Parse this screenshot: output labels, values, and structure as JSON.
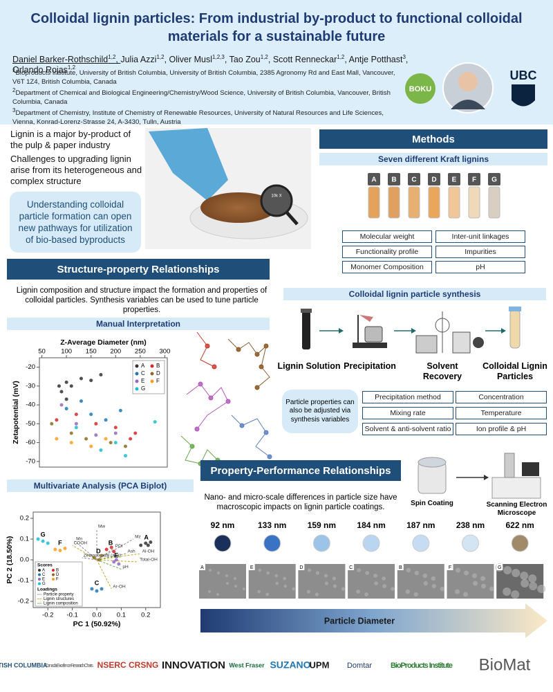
{
  "header": {
    "title": "Colloidal lignin particles: From industrial by-product to functional colloidal materials for a sustainable future",
    "authors": [
      {
        "name": "Daniel Barker-Rothschild",
        "sup": "1,2"
      },
      {
        "name": "Julia Azzi",
        "sup": "1,2"
      },
      {
        "name": "Oliver Musl",
        "sup": "1,2,3"
      },
      {
        "name": "Tao Zou",
        "sup": "1,2"
      },
      {
        "name": "Scott Renneckar",
        "sup": "1,2"
      },
      {
        "name": "Antje Potthast",
        "sup": "3"
      },
      {
        "name": "Orlando Rojas",
        "sup": "1,2"
      }
    ],
    "affiliations": [
      {
        "sup": "1",
        "text": "Bioproducts Institute, University of British Columbia, University of British Columbia, 2385 Agronomy Rd and East Mall, Vancouver, V6T 1Z4, British Columbia, Canada"
      },
      {
        "sup": "2",
        "text": "Department of Chemical and Biological Engineering/Chemistry/Wood Science, University of British Columbia, Vancouver, British Columbia, Canada"
      },
      {
        "sup": "3",
        "text": "Department of Chemistry, Institute of Chemistry of Renewable Resources, University of Natural Resources and Life Sciences, Vienna, Konrad-Lorenz-Strasse 24, A-3430, Tulln, Austria"
      }
    ],
    "logos": [
      "BOKU",
      "UBC"
    ]
  },
  "intro": {
    "points": [
      "Lignin is a major by-product of the pulp & paper industry",
      "Challenges to upgrading lignin arise from its heterogeneous and complex structure"
    ],
    "callout": "Understanding colloidal particle formation can open new pathways for utilization of bio-based byproducts",
    "photo_label": "10k X"
  },
  "methods": {
    "heading": "Methods",
    "subheading": "Seven different Kraft lignins",
    "vials": [
      "A",
      "B",
      "C",
      "D",
      "E",
      "F",
      "G"
    ],
    "properties": [
      "Molecular weight",
      "Inter-unit linkages",
      "Functionality profile",
      "Impurities",
      "Monomer Composition",
      "pH"
    ]
  },
  "structure": {
    "heading": "Structure-property Relationships",
    "text": "Lignin composition and structure impact the formation and properties of colloidal particles. Synthesis variables can be used to tune particle properties.",
    "manual": "Manual Interpretation",
    "multivariate": "Multivariate Analysis (PCA Biplot)",
    "zeta_plot": {
      "type": "scatter",
      "x_label": "Z-Average Diameter (nm)",
      "y_label": "Zetapotential (mV)",
      "x_axis": "top",
      "xlim": [
        45,
        305
      ],
      "ylim": [
        -73,
        -15
      ],
      "xticks": [
        50,
        100,
        150,
        200,
        250,
        300
      ],
      "yticks": [
        -20,
        -30,
        -40,
        -50,
        -60,
        -70
      ],
      "legend": "upper right",
      "series": [
        {
          "name": "A",
          "color": "#333333",
          "x": [
            85,
            90,
            100,
            100,
            110,
            130,
            150,
            170
          ],
          "values": [
            -30,
            -33,
            -28,
            -37,
            -30,
            -26,
            -27,
            -24
          ]
        },
        {
          "name": "B",
          "color": "#d62728",
          "x": [
            80,
            120,
            160,
            200,
            230,
            240
          ],
          "values": [
            -48,
            -45,
            -50,
            -52,
            -58,
            -55
          ]
        },
        {
          "name": "C",
          "color": "#1f77b4",
          "x": [
            100,
            130,
            150,
            180,
            210
          ],
          "values": [
            -42,
            -38,
            -45,
            -48,
            -43
          ]
        },
        {
          "name": "D",
          "color": "#8c6d1f",
          "x": [
            70,
            110,
            140,
            190,
            220
          ],
          "values": [
            -50,
            -55,
            -58,
            -60,
            -62
          ]
        },
        {
          "name": "E",
          "color": "#9467bd",
          "x": [
            90,
            120,
            160,
            200
          ],
          "values": [
            -40,
            -50,
            -56,
            -55
          ]
        },
        {
          "name": "F",
          "color": "#ff9f1c",
          "x": [
            80,
            110,
            150,
            180
          ],
          "values": [
            -58,
            -60,
            -62,
            -58
          ]
        },
        {
          "name": "G",
          "color": "#17becf",
          "x": [
            120,
            170,
            200,
            220,
            280
          ],
          "values": [
            -52,
            -64,
            -60,
            -67,
            -49
          ]
        }
      ]
    },
    "pca": {
      "type": "biplot",
      "x_label": "PC 1 (50.92%)",
      "y_label": "PC 2 (18.50%)",
      "x_axis": "bottom",
      "xlim": [
        -0.26,
        0.26
      ],
      "ylim": [
        -0.23,
        0.23
      ],
      "xticks": [
        -0.2,
        -0.1,
        {
          "value": 0,
          "label": "0.0"
        },
        0.1,
        0.2
      ],
      "yticks": [
        0.2,
        0.1,
        {
          "value": 0,
          "label": "0.0"
        },
        -0.1,
        -0.2
      ],
      "legend": "lower left",
      "scores_title": "Scores",
      "loadings_title": "Loadings",
      "series": [
        {
          "name": "A",
          "color": "#333333",
          "x": [
            0.18,
            0.2,
            0.21,
            0.22
          ],
          "values": [
            0.07,
            0.08,
            0.07,
            0.085
          ]
        },
        {
          "name": "B",
          "color": "#d62728",
          "x": [
            0.04,
            0.06,
            0.07
          ],
          "values": [
            0.05,
            0.06,
            0.04
          ]
        },
        {
          "name": "C",
          "color": "#1f77b4",
          "x": [
            -0.02,
            0.0,
            0.02
          ],
          "values": [
            -0.14,
            -0.15,
            -0.14
          ]
        },
        {
          "name": "D",
          "color": "#8c6d1f",
          "x": [
            -0.01,
            0.01,
            0.02
          ],
          "values": [
            0.01,
            0.0,
            0.02
          ]
        },
        {
          "name": "E",
          "color": "#9467bd",
          "x": [
            0.07,
            0.08,
            0.09
          ],
          "values": [
            -0.01,
            0.0,
            -0.02
          ]
        },
        {
          "name": "F",
          "color": "#ff9f1c",
          "x": [
            -0.17,
            -0.15,
            -0.13
          ],
          "values": [
            0.05,
            0.045,
            0.055
          ]
        },
        {
          "name": "G",
          "color": "#17becf",
          "x": [
            -0.24,
            -0.22,
            -0.2
          ],
          "values": [
            0.1,
            0.09,
            0.08
          ]
        }
      ],
      "loading_groups": [
        {
          "name": "Particle property",
          "color": "#8a8a8a"
        },
        {
          "name": "Lignin structures",
          "color": "#c9a227"
        },
        {
          "name": "Lignin composition",
          "color": "#6aa84f"
        }
      ],
      "loadings": [
        {
          "name": "Mw",
          "x": 0.0,
          "y": 0.15,
          "group": "Particle property"
        },
        {
          "name": "Mz",
          "x": 0.15,
          "y": 0.1,
          "group": "Particle property"
        },
        {
          "name": "PDI",
          "x": 0.07,
          "y": 0.055,
          "group": "Particle property"
        },
        {
          "name": "Al-OH",
          "x": 0.18,
          "y": 0.03,
          "group": "Lignin structures"
        },
        {
          "name": "Ash",
          "x": 0.12,
          "y": 0.03,
          "group": "Lignin composition"
        },
        {
          "name": "Total-OH",
          "x": 0.17,
          "y": -0.01,
          "group": "Lignin structures"
        },
        {
          "name": "pH",
          "x": 0.1,
          "y": -0.045,
          "group": "Lignin composition"
        },
        {
          "name": "Ar-OH",
          "x": 0.06,
          "y": -0.14,
          "group": "Lignin structures"
        },
        {
          "name": "Mn",
          "x": -0.09,
          "y": 0.09,
          "group": "Particle property"
        },
        {
          "name": "COOH",
          "x": -0.1,
          "y": 0.07,
          "group": "Lignin structures"
        },
        {
          "name": "Zetapotential (abs)",
          "x": -0.06,
          "y": 0.01,
          "group": "Particle property"
        }
      ]
    }
  },
  "synthesis": {
    "heading": "Colloidal lignin particle synthesis",
    "steps": [
      "Lignin Solution",
      "Precipitation",
      "Solvent Recovery",
      "Colloidal Lignin Particles"
    ],
    "note": "Particle properties can also be adjusted via synthesis variables",
    "variables": [
      "Precipitation method",
      "Concentration",
      "Mixing rate",
      "Temperature",
      "Solvent & anti-solvent ratio",
      "Ion profile & pH"
    ]
  },
  "performance": {
    "heading": "Property-Performance Relationships",
    "text": "Nano- and micro-scale differences in particle size have macroscopic impacts on lignin particle coatings.",
    "tools": [
      "Spin Coating",
      "Scanning Electron Microscope"
    ],
    "sizes": [
      "92 nm",
      "133 nm",
      "159 nm",
      "184 nm",
      "187 nm",
      "238 nm",
      "622 nm"
    ],
    "sem_labels": [
      "A",
      "E",
      "D",
      "C",
      "B",
      "F",
      "G"
    ],
    "scale": "Particle Diameter"
  },
  "sponsors": [
    "BRITISH COLUMBIA",
    "Canada Excellence Research Chairs",
    "NSERC CRSNG",
    "INNOVATION",
    "West Fraser",
    "SUZANO",
    "UPM",
    "Domtar",
    "BioProducts Institute",
    "BioMat"
  ]
}
